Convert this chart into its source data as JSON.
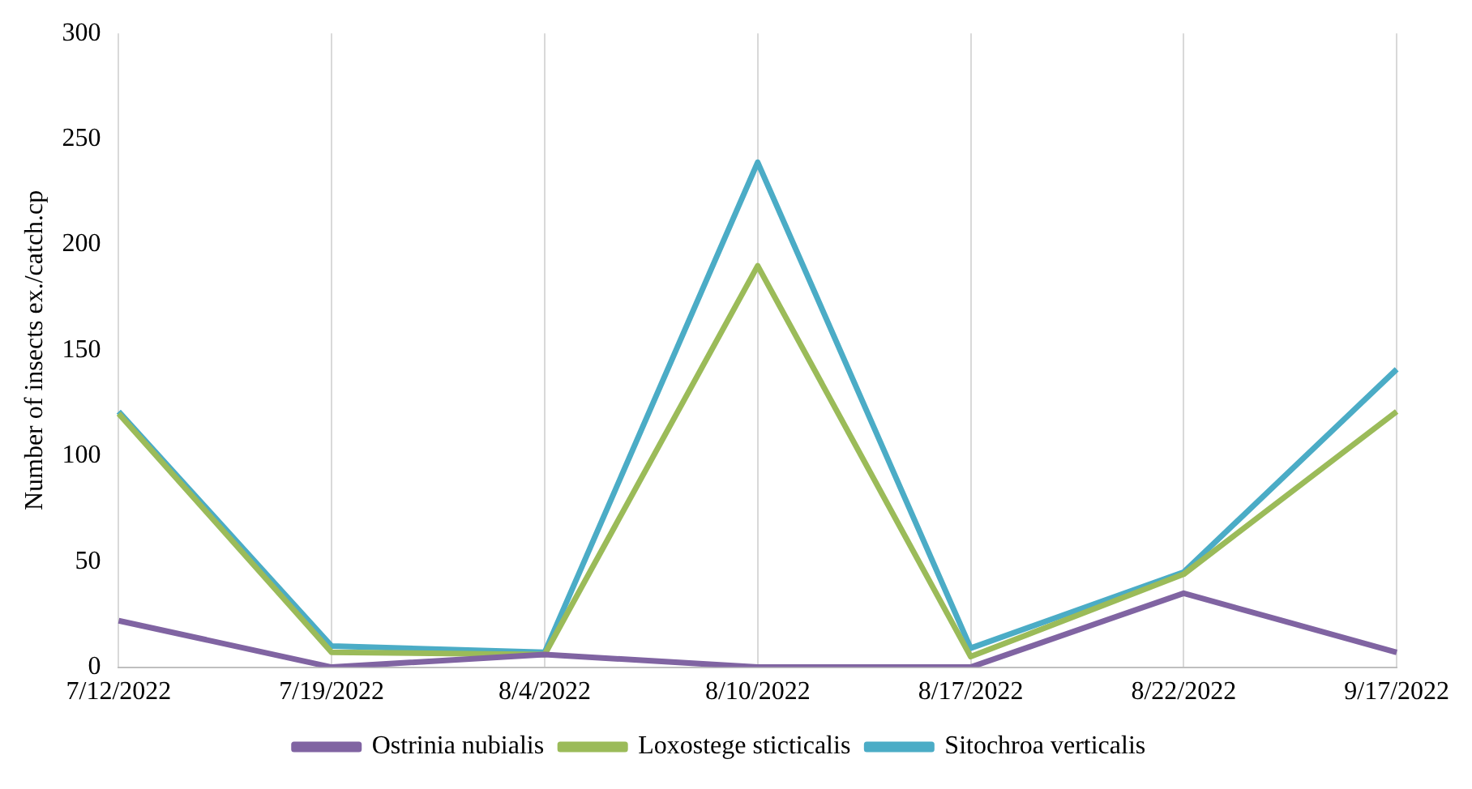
{
  "chart_data": {
    "type": "line",
    "ylabel": "Number of insects ex./catch.cp",
    "categories": [
      "7/12/2022",
      "7/19/2022",
      "8/4/2022",
      "8/10/2022",
      "8/17/2022",
      "8/22/2022",
      "9/17/2022"
    ],
    "series": [
      {
        "name": "Ostrinia nubialis",
        "color": "#8064a2",
        "values": [
          22,
          0,
          6,
          0,
          0,
          35,
          7
        ]
      },
      {
        "name": "Loxostege sticticalis",
        "color": "#9bbb59",
        "values": [
          120,
          7,
          6,
          190,
          5,
          44,
          121
        ]
      },
      {
        "name": "Sitochroa verticalis",
        "color": "#4bacc6",
        "values": [
          121,
          10,
          7,
          239,
          9,
          45,
          141
        ]
      }
    ],
    "ylim": [
      0,
      300
    ],
    "yticks": [
      0,
      50,
      100,
      150,
      200,
      250,
      300
    ],
    "grid": "x",
    "legend": "bottom",
    "marker": "none",
    "line_style": "solid"
  }
}
